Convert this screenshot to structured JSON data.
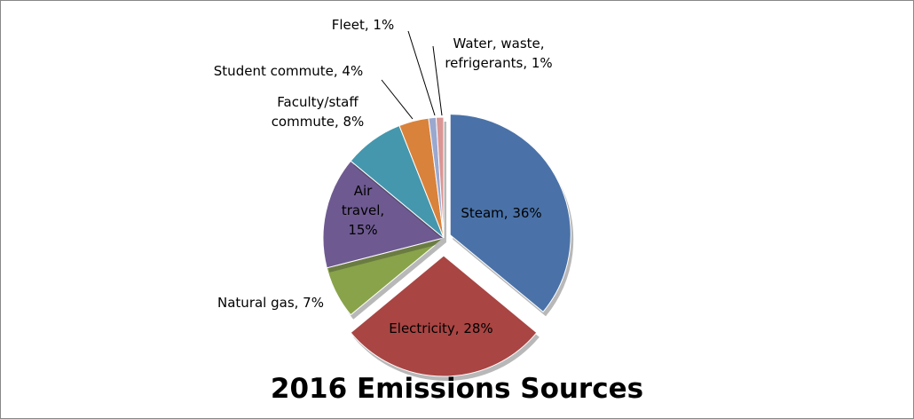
{
  "chart_data": {
    "type": "pie",
    "title": "2016 Emissions Sources",
    "values": [
      36,
      28,
      7,
      15,
      8,
      4,
      1,
      1
    ],
    "value_labels": [
      "Steam, 36%",
      "Electricity, 28%",
      "Natural gas, 7%",
      "Air travel, 15%",
      "Faculty/staff commute, 8%",
      "Student commute, 4%",
      "Fleet, 1%",
      "Water, waste, refrigerants, 1%"
    ],
    "colors": [
      "#4a72a8",
      "#a94543",
      "#89a34a",
      "#6e5a91",
      "#4597ad",
      "#d9823b",
      "#9aa8cf",
      "#d99694"
    ]
  }
}
